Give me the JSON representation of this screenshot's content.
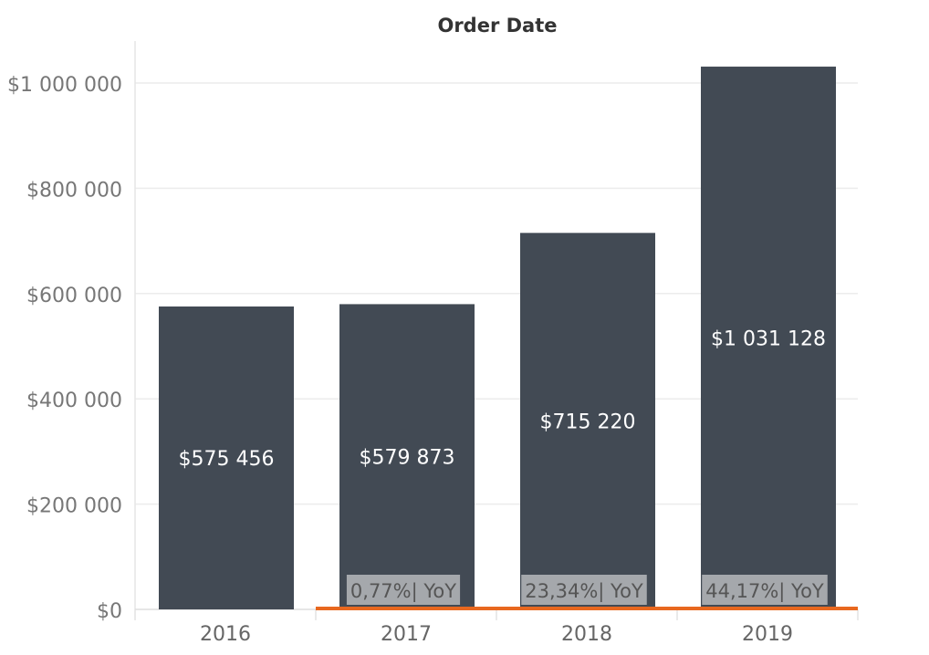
{
  "chart_data": {
    "type": "bar",
    "title": "Order Date",
    "xlabel": "",
    "ylabel": "",
    "categories": [
      "2016",
      "2017",
      "2018",
      "2019"
    ],
    "values": [
      575456,
      579873,
      715220,
      1031128
    ],
    "value_labels": [
      "$575 456",
      "$579 873",
      "$715 220",
      "$1 031 128"
    ],
    "ylim": [
      0,
      1100000
    ],
    "yticks": [
      0,
      200000,
      400000,
      600000,
      800000,
      1000000
    ],
    "ytick_labels": [
      "$0",
      "$200 000",
      "$400 000",
      "$600 000",
      "$800 000",
      "$1 000 000"
    ],
    "yoy": [
      {
        "category": "2017",
        "label": "0,77%| YoY"
      },
      {
        "category": "2018",
        "label": "23,34%| YoY"
      },
      {
        "category": "2019",
        "label": "44,17%| YoY"
      }
    ],
    "grid": true,
    "bar_color": "#424a54",
    "yoy_line_color": "#e8681f",
    "yoy_label_bg": "#b0b2b6"
  }
}
